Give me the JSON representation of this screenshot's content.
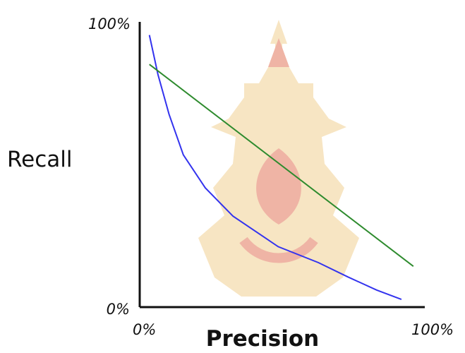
{
  "chart_data": {
    "type": "line",
    "title": "",
    "xlabel": "Precision",
    "ylabel": "Recall",
    "xlim": [
      0,
      100
    ],
    "ylim": [
      0,
      100
    ],
    "x_ticks": [
      "0%",
      "100%"
    ],
    "y_ticks": [
      "0%",
      "100%"
    ],
    "grid": false,
    "legend": "none",
    "series": [
      {
        "color": "#3333ee",
        "points": [
          [
            3.4,
            95.4
          ],
          [
            6.4,
            81.5
          ],
          [
            10.3,
            67.6
          ],
          [
            15.3,
            53.4
          ],
          [
            23.0,
            41.8
          ],
          [
            32.7,
            31.9
          ],
          [
            48.6,
            21.2
          ],
          [
            62.7,
            15.6
          ],
          [
            73.0,
            10.6
          ],
          [
            83.1,
            6.0
          ],
          [
            91.8,
            2.7
          ]
        ]
      },
      {
        "color": "#2e8b2e",
        "points": [
          [
            3.4,
            85.1
          ],
          [
            96.0,
            14.3
          ]
        ]
      }
    ]
  },
  "watermark": {
    "color": "#f0cc88",
    "accent": "#e06c4e"
  }
}
